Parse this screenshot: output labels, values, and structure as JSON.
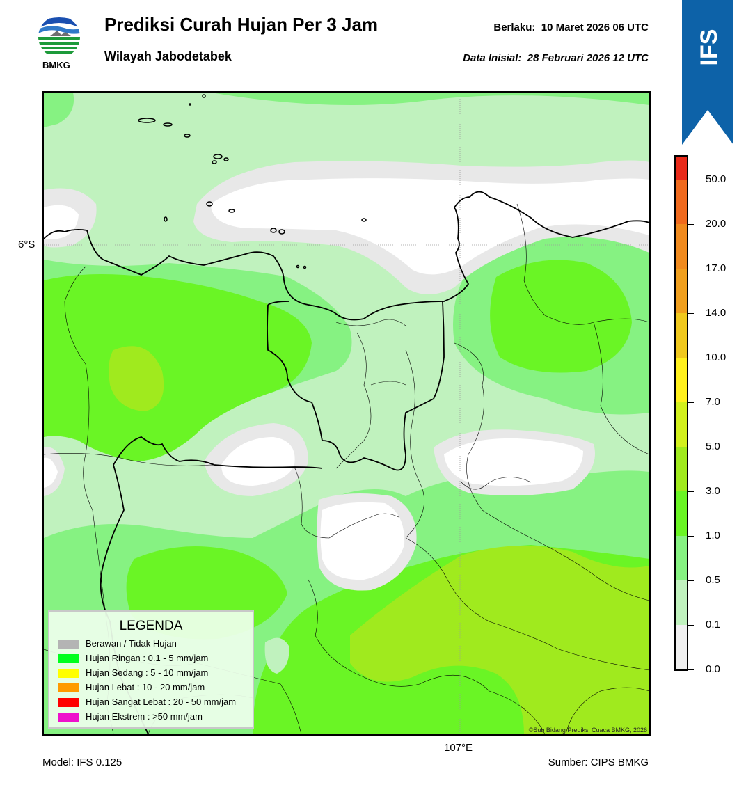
{
  "header": {
    "title": "Prediksi Curah Hujan Per 3 Jam",
    "subtitle": "Wilayah Jabodetabek",
    "valid_label": "Berlaku:",
    "valid_time": "10 Maret 2026 06 UTC",
    "init_label": "Data Inisial:",
    "init_time": "28 Februari 2026 12 UTC",
    "logo_text": "BMKG",
    "banner_text": "IFS"
  },
  "map": {
    "lat_label": "6°S",
    "lon_label": "107°E",
    "copyright": "©Sub Bidang Prediksi Cuaca BMKG, 2026"
  },
  "legend": {
    "title": "LEGENDA",
    "items": [
      {
        "label": "Berawan / Tidak Hujan",
        "color": "#b4b4b4"
      },
      {
        "label": "Hujan Ringan : 0.1 - 5 mm/jam",
        "color": "#00ff1e"
      },
      {
        "label": "Hujan Sedang : 5 - 10 mm/jam",
        "color": "#ffff00"
      },
      {
        "label": "Hujan Lebat : 10 - 20 mm/jam",
        "color": "#ff9a00"
      },
      {
        "label": "Hujan Sangat Lebat : 20 - 50 mm/jam",
        "color": "#ff0000"
      },
      {
        "label": "Hujan Ekstrem : >50 mm/jam",
        "color": "#ee11cc"
      }
    ]
  },
  "colorbar": {
    "ticks": [
      "0.0",
      "0.1",
      "0.5",
      "1.0",
      "3.0",
      "5.0",
      "7.0",
      "10.0",
      "14.0",
      "17.0",
      "20.0",
      "50.0"
    ],
    "colors": [
      "#f0f0f0",
      "#c0f2be",
      "#86f282",
      "#6af525",
      "#a0ea1e",
      "#d2f01e",
      "#fff01e",
      "#f0c81e",
      "#f09f1e",
      "#f08a1e",
      "#f06a1e",
      "#e82a1a",
      "#e41ec8"
    ]
  },
  "footer": {
    "model": "Model: IFS 0.125",
    "source": "Sumber: CIPS BMKG"
  }
}
